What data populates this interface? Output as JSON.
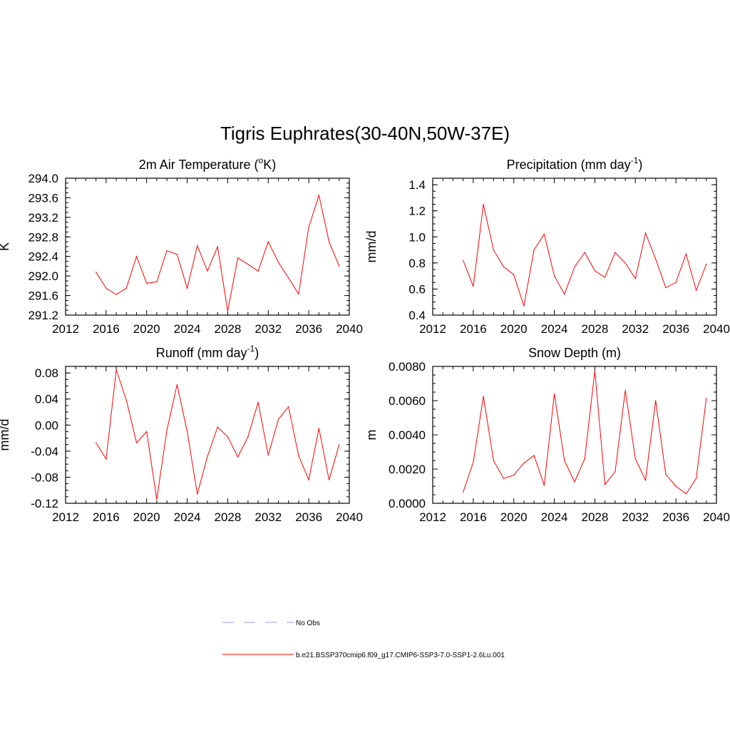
{
  "figure": {
    "title": "Tigris Euphrates(30-40N,50W-37E)",
    "line_color": "#ff0000",
    "obs_color": "#9999ee"
  },
  "legend": [
    {
      "label": "No Obs",
      "style": "dashed",
      "color": "#9999ee"
    },
    {
      "label": "b.e21.BSSP370cmip6.f09_g17.CMIP6-SSP3-7.0-SSP1-2.6Lu.001",
      "style": "solid",
      "color": "#ff0000"
    }
  ],
  "chart_data": [
    {
      "type": "line",
      "title": "2m Air Temperature (°K)",
      "title_main": "2m Air Temperature (",
      "title_sup": "o",
      "title_end": "K)",
      "ylabel": "K",
      "xlim": [
        2012,
        2040
      ],
      "ylim": [
        291.2,
        294.0
      ],
      "xticks": [
        "2012",
        "2016",
        "2020",
        "2024",
        "2028",
        "2032",
        "2036",
        "2040"
      ],
      "yticks": [
        "291.2",
        "291.6",
        "292.0",
        "292.4",
        "292.8",
        "293.2",
        "293.6",
        "294.0"
      ],
      "x": [
        2015,
        2016,
        2017,
        2018,
        2019,
        2020,
        2021,
        2022,
        2023,
        2024,
        2025,
        2026,
        2027,
        2028,
        2029,
        2030,
        2031,
        2032,
        2033,
        2034,
        2035,
        2036,
        2037,
        2038,
        2039
      ],
      "values": [
        292.08,
        291.75,
        291.62,
        291.75,
        292.4,
        291.85,
        291.88,
        292.52,
        292.44,
        291.75,
        292.62,
        292.1,
        292.6,
        291.28,
        292.37,
        292.24,
        292.1,
        292.7,
        292.28,
        291.96,
        291.63,
        293.0,
        293.65,
        292.7,
        292.2
      ]
    },
    {
      "type": "line",
      "title": "Precipitation (mm day-1)",
      "title_main": "Precipitation (mm day",
      "title_sup": "-1",
      "title_end": ")",
      "ylabel": "mm/d",
      "xlim": [
        2012,
        2040
      ],
      "ylim": [
        0.4,
        1.45
      ],
      "xticks": [
        "2012",
        "2016",
        "2020",
        "2024",
        "2028",
        "2032",
        "2036",
        "2040"
      ],
      "yticks": [
        "0.4",
        "0.6",
        "0.8",
        "1.0",
        "1.2",
        "1.4"
      ],
      "x": [
        2015,
        2016,
        2017,
        2018,
        2019,
        2020,
        2021,
        2022,
        2023,
        2024,
        2025,
        2026,
        2027,
        2028,
        2029,
        2030,
        2031,
        2032,
        2033,
        2034,
        2035,
        2036,
        2037,
        2038,
        2039
      ],
      "values": [
        0.82,
        0.62,
        1.25,
        0.9,
        0.77,
        0.71,
        0.47,
        0.9,
        1.02,
        0.7,
        0.56,
        0.77,
        0.88,
        0.74,
        0.69,
        0.88,
        0.8,
        0.68,
        1.03,
        0.83,
        0.61,
        0.65,
        0.87,
        0.59,
        0.79
      ]
    },
    {
      "type": "line",
      "title": "Runoff (mm day-1)",
      "title_main": "Runoff (mm day",
      "title_sup": "-1",
      "title_end": ")",
      "ylabel": "mm/d",
      "xlim": [
        2012,
        2040
      ],
      "ylim": [
        -0.12,
        0.09
      ],
      "xticks": [
        "2012",
        "2016",
        "2020",
        "2024",
        "2028",
        "2032",
        "2036",
        "2040"
      ],
      "yticks": [
        "-0.12",
        "-0.08",
        "-0.04",
        "0.00",
        "0.04",
        "0.08"
      ],
      "x": [
        2015,
        2016,
        2017,
        2018,
        2019,
        2020,
        2021,
        2022,
        2023,
        2024,
        2025,
        2026,
        2027,
        2028,
        2029,
        2030,
        2031,
        2032,
        2033,
        2034,
        2035,
        2036,
        2037,
        2038,
        2039
      ],
      "values": [
        -0.027,
        -0.052,
        0.085,
        0.038,
        -0.027,
        -0.01,
        -0.114,
        -0.008,
        0.062,
        -0.01,
        -0.106,
        -0.048,
        -0.003,
        -0.018,
        -0.049,
        -0.018,
        0.035,
        -0.046,
        0.009,
        0.028,
        -0.047,
        -0.084,
        -0.005,
        -0.084,
        -0.03
      ]
    },
    {
      "type": "line",
      "title": "Snow Depth (m)",
      "title_main": "Snow Depth (m)",
      "title_sup": "",
      "title_end": "",
      "ylabel": "m",
      "xlim": [
        2012,
        2040
      ],
      "ylim": [
        0.0,
        0.008
      ],
      "xticks": [
        "2012",
        "2016",
        "2020",
        "2024",
        "2028",
        "2032",
        "2036",
        "2040"
      ],
      "yticks": [
        "0.0000",
        "0.0020",
        "0.0040",
        "0.0060",
        "0.0080"
      ],
      "x": [
        2015,
        2016,
        2017,
        2018,
        2019,
        2020,
        2021,
        2022,
        2023,
        2024,
        2025,
        2026,
        2027,
        2028,
        2029,
        2030,
        2031,
        2032,
        2033,
        2034,
        2035,
        2036,
        2037,
        2038,
        2039
      ],
      "values": [
        0.00065,
        0.0024,
        0.00625,
        0.0025,
        0.00145,
        0.00165,
        0.00235,
        0.0028,
        0.00105,
        0.0064,
        0.0025,
        0.00125,
        0.0026,
        0.00775,
        0.0011,
        0.00185,
        0.0066,
        0.0026,
        0.00135,
        0.006,
        0.0017,
        0.001,
        0.00055,
        0.00145,
        0.00615
      ]
    }
  ]
}
